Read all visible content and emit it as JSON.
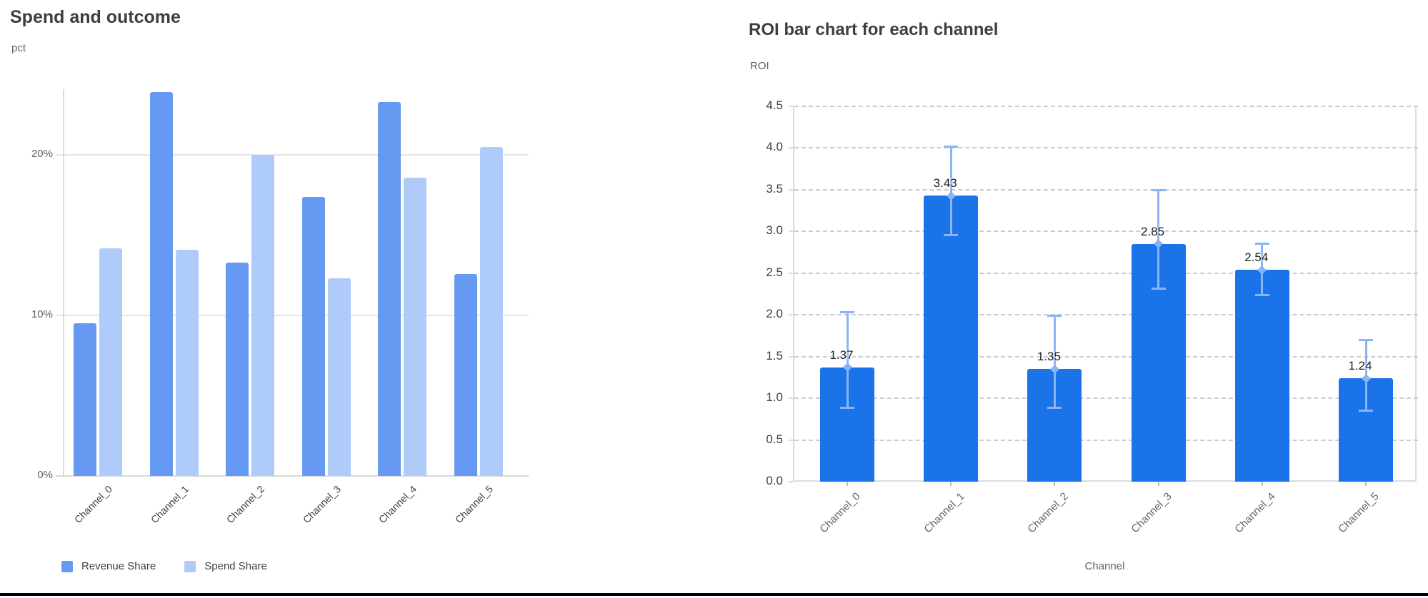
{
  "chart_data": [
    {
      "type": "bar",
      "title": "Spend and outcome",
      "ylabel": "pct",
      "xlabel": "",
      "categories": [
        "Channel_0",
        "Channel_1",
        "Channel_2",
        "Channel_3",
        "Channel_4",
        "Channel_5"
      ],
      "series": [
        {
          "name": "Revenue Share",
          "color": "#6699f2",
          "values": [
            9.5,
            23.9,
            13.3,
            17.4,
            23.3,
            12.6
          ]
        },
        {
          "name": "Spend Share",
          "color": "#aecbfa",
          "values": [
            14.2,
            14.1,
            20.0,
            12.3,
            18.6,
            20.5
          ]
        }
      ],
      "y_ticks": [
        {
          "value": 0,
          "label": "0%"
        },
        {
          "value": 10,
          "label": "10%"
        },
        {
          "value": 20,
          "label": "20%"
        }
      ],
      "ylim": [
        0,
        24.1
      ],
      "grid": "solid-horizontal",
      "legend_position": "bottom-left",
      "value_unit": "percent"
    },
    {
      "type": "bar",
      "title": "ROI bar chart for each channel",
      "ylabel": "ROI",
      "xlabel": "Channel",
      "categories": [
        "Channel_0",
        "Channel_1",
        "Channel_2",
        "Channel_3",
        "Channel_4",
        "Channel_5"
      ],
      "series": [
        {
          "name": "ROI",
          "color": "#1a73e8",
          "values": [
            1.37,
            3.43,
            1.35,
            2.85,
            2.54,
            1.24
          ]
        }
      ],
      "data_labels": [
        "1.37",
        "3.43",
        "1.35",
        "2.85",
        "2.54",
        "1.24"
      ],
      "error_bars": {
        "color": "#8ab4f8",
        "low": [
          0.88,
          2.95,
          0.88,
          2.31,
          2.23,
          0.85
        ],
        "high": [
          2.04,
          4.02,
          1.99,
          3.5,
          2.86,
          1.7
        ]
      },
      "y_ticks": [
        {
          "value": 0,
          "label": "0.0"
        },
        {
          "value": 0.5,
          "label": "0.5"
        },
        {
          "value": 1,
          "label": "1.0"
        },
        {
          "value": 1.5,
          "label": "1.5"
        },
        {
          "value": 2,
          "label": "2.0"
        },
        {
          "value": 2.5,
          "label": "2.5"
        },
        {
          "value": 3,
          "label": "3.0"
        },
        {
          "value": 3.5,
          "label": "3.5"
        },
        {
          "value": 4,
          "label": "4.0"
        },
        {
          "value": 4.5,
          "label": "4.5"
        }
      ],
      "ylim": [
        0,
        4.5
      ],
      "grid": "dashed-horizontal",
      "legend_position": "none"
    }
  ]
}
